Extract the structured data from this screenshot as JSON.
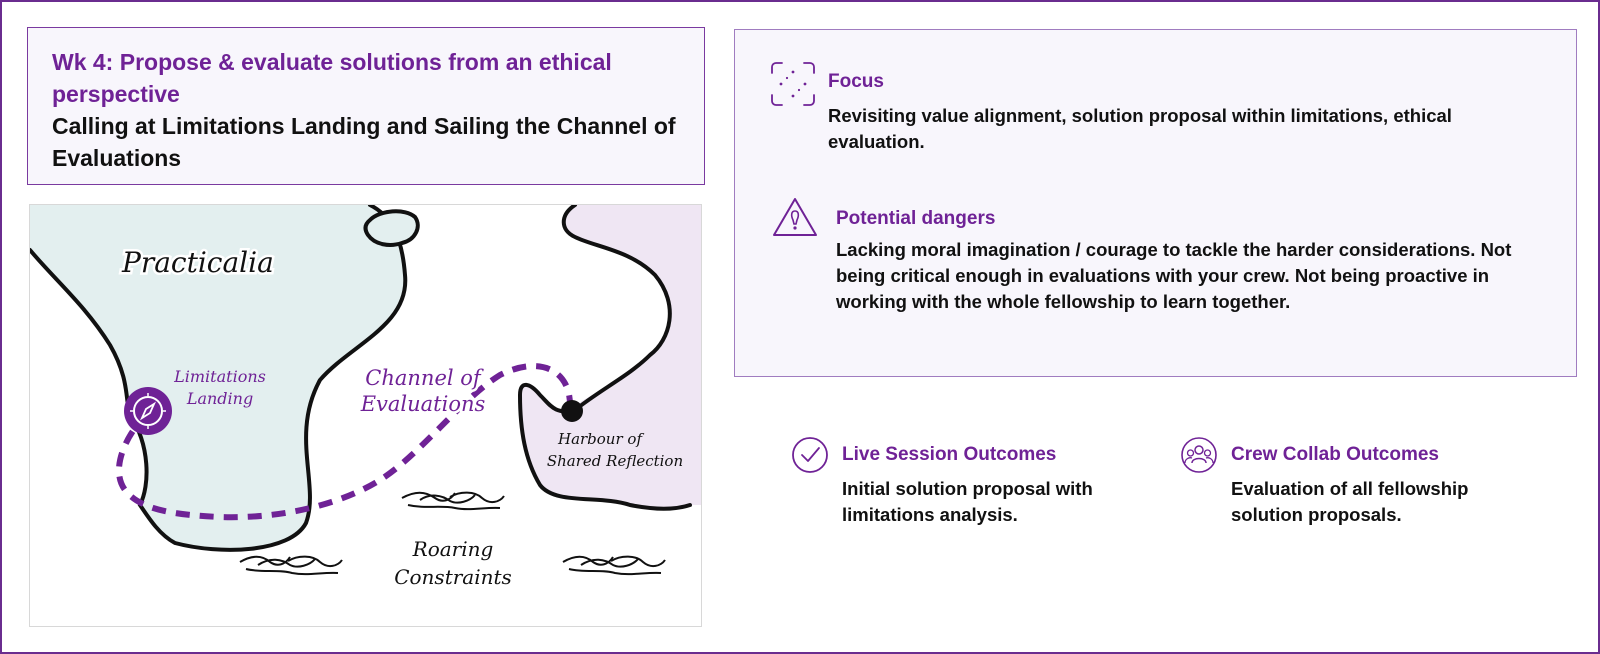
{
  "header": {
    "week_title": "Wk 4: Propose & evaluate solutions from an ethical perspective",
    "subtitle": "Calling at Limitations Landing and Sailing the Channel of Evaluations"
  },
  "map": {
    "labels": {
      "practicalia": "Practicalia",
      "limitations_line1": "Limitations",
      "limitations_line2": "Landing",
      "channel_line1": "Channel of",
      "channel_line2": "Evaluations",
      "harbour_line1": "Harbour of",
      "harbour_line2": "Shared Reflection",
      "roaring_line1": "Roaring",
      "roaring_line2": "Constraints"
    },
    "colors": {
      "land_left": "#e3efef",
      "land_right": "#efe6f3",
      "route": "#6f2296",
      "coast": "#111111"
    }
  },
  "focus": {
    "icon": "focus-frame-icon",
    "title": "Focus",
    "body": "Revisiting value alignment, solution proposal within limitations, ethical evaluation."
  },
  "dangers": {
    "icon": "warning-triangle-icon",
    "title": "Potential dangers",
    "body": "Lacking moral imagination / courage to tackle the harder considerations. Not being critical enough in evaluations with your crew. Not being proactive in working with the whole fellowship to learn together."
  },
  "outcomes": {
    "live": {
      "icon": "check-circle-icon",
      "title": "Live Session Outcomes",
      "body": "Initial solution proposal with limitations analysis."
    },
    "crew": {
      "icon": "group-icon",
      "title": "Crew Collab Outcomes",
      "body": "Evaluation of all fellowship solution proposals."
    }
  },
  "colors": {
    "accent": "#6f2296",
    "card_bg": "#f8f6fc",
    "frame": "#6a2c8f"
  }
}
